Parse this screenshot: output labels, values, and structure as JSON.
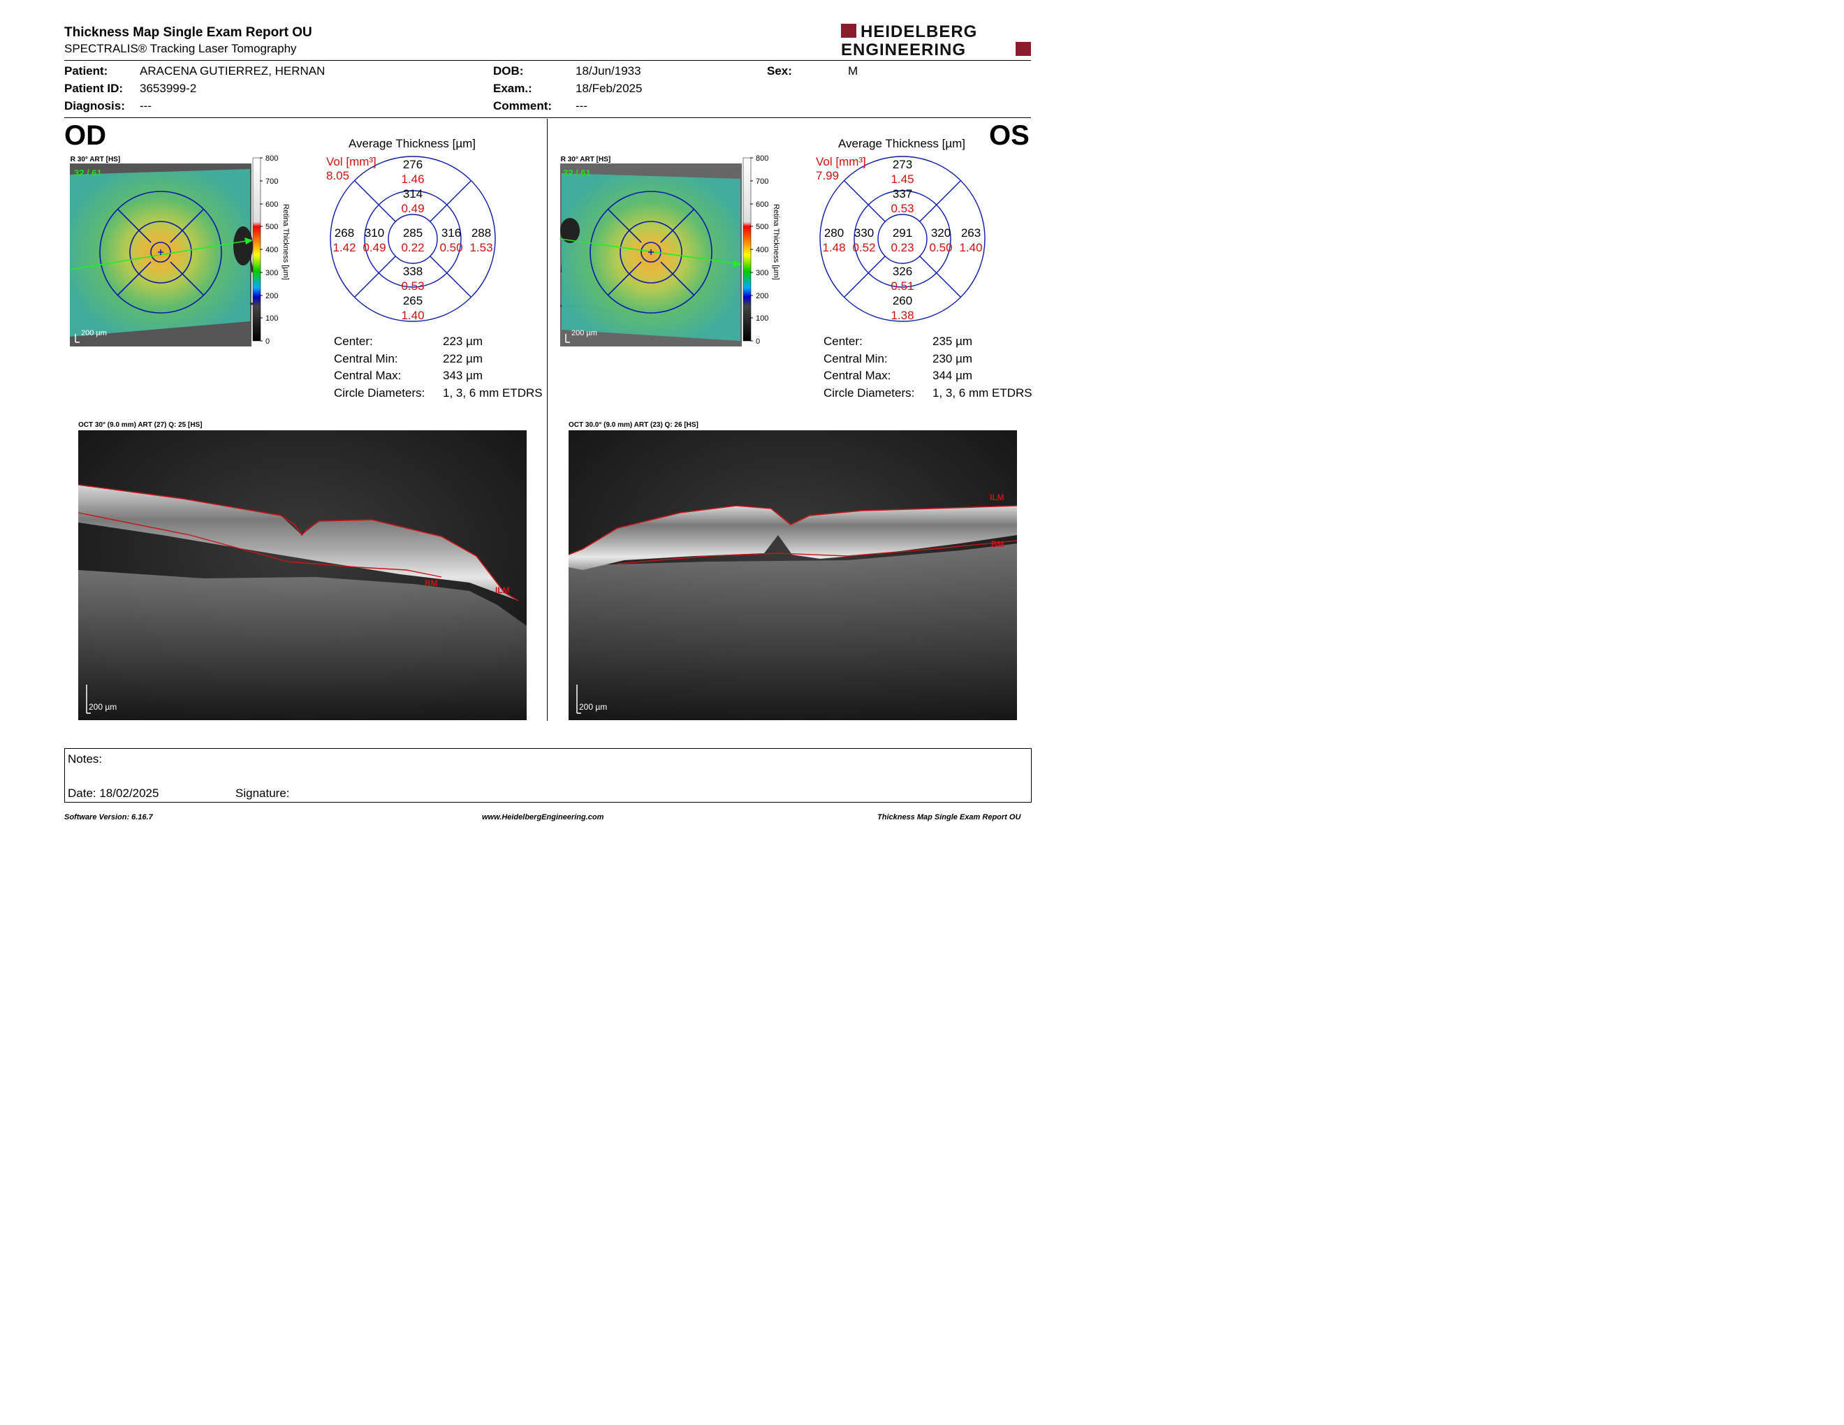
{
  "header": {
    "title": "Thickness Map Single Exam Report OU",
    "subtitle": "SPECTRALIS® Tracking Laser Tomography",
    "logo_line1": "HEIDELBERG",
    "logo_line2": "ENGINEERING",
    "brand_color": "#8b1c2c"
  },
  "patient": {
    "patient_label": "Patient:",
    "patient_value": "ARACENA GUTIERREZ, HERNAN",
    "id_label": "Patient ID:",
    "id_value": "3653999-2",
    "diagnosis_label": "Diagnosis:",
    "diagnosis_value": "---",
    "dob_label": "DOB:",
    "dob_value": "18/Jun/1933",
    "exam_label": "Exam.:",
    "exam_value": "18/Feb/2025",
    "comment_label": "Comment:",
    "comment_value": "---",
    "sex_label": "Sex:",
    "sex_value": "M"
  },
  "colorbar": {
    "ticks": [
      "800",
      "700",
      "600",
      "500",
      "400",
      "300",
      "200",
      "100",
      "0"
    ],
    "label": "Retina Thickness [µm]"
  },
  "od": {
    "eye_label": "OD",
    "ir_label": "IR 30° ART [HS]",
    "frame_counter": "32 / 61",
    "ir_scale": "200 µm",
    "grid_title": "Average Thickness [µm]",
    "vol_label": "Vol [mm³]",
    "vol_value": "8.05",
    "grid": {
      "outer_sup": "276",
      "outer_sup_vol": "1.46",
      "inner_sup": "314",
      "inner_sup_vol": "0.49",
      "outer_temp": "268",
      "outer_temp_vol": "1.42",
      "inner_temp": "310",
      "inner_temp_vol": "0.49",
      "center": "285",
      "center_vol": "0.22",
      "inner_nasal": "316",
      "inner_nasal_vol": "0.50",
      "outer_nasal": "288",
      "outer_nasal_vol": "1.53",
      "inner_inf": "338",
      "inner_inf_vol": "0.53",
      "outer_inf": "265",
      "outer_inf_vol": "1.40"
    },
    "stats": {
      "center_label": "Center:",
      "center_value": "223 µm",
      "min_label": "Central Min:",
      "min_value": "222 µm",
      "max_label": "Central Max:",
      "max_value": "343 µm",
      "diam_label": "Circle Diameters:",
      "diam_value": "1, 3, 6 mm ETDRS"
    },
    "oct_label": "OCT 30° (9.0 mm) ART (27) Q: 25 [HS]",
    "oct_ilm": "ILM",
    "oct_bm": "BM",
    "oct_scale": "200 µm"
  },
  "os": {
    "eye_label": "OS",
    "ir_label": "IR 30° ART [HS]",
    "frame_counter": "32 / 61",
    "ir_scale": "200 µm",
    "grid_title": "Average Thickness [µm]",
    "vol_label": "Vol [mm³]",
    "vol_value": "7.99",
    "grid": {
      "outer_sup": "273",
      "outer_sup_vol": "1.45",
      "inner_sup": "337",
      "inner_sup_vol": "0.53",
      "outer_temp": "280",
      "outer_temp_vol": "1.48",
      "inner_temp": "330",
      "inner_temp_vol": "0.52",
      "center": "291",
      "center_vol": "0.23",
      "inner_nasal": "320",
      "inner_nasal_vol": "0.50",
      "outer_nasal": "263",
      "outer_nasal_vol": "1.40",
      "inner_inf": "326",
      "inner_inf_vol": "0.51",
      "outer_inf": "260",
      "outer_inf_vol": "1.38"
    },
    "stats": {
      "center_label": "Center:",
      "center_value": "235 µm",
      "min_label": "Central Min:",
      "min_value": "230 µm",
      "max_label": "Central Max:",
      "max_value": "344 µm",
      "diam_label": "Circle Diameters:",
      "diam_value": "1, 3, 6 mm ETDRS"
    },
    "oct_label": "OCT 30.0° (9.0 mm) ART (23) Q: 26 [HS]",
    "oct_ilm": "ILM",
    "oct_bm": "BM",
    "oct_scale": "200 µm"
  },
  "notes": {
    "notes_label": "Notes:",
    "date_label": "Date: 18/02/2025",
    "signature_label": "Signature:"
  },
  "footer": {
    "software": "Software Version: 6.16.7",
    "website": "www.HeidelbergEngineering.com",
    "report": "Thickness Map Single Exam Report OU"
  },
  "colors": {
    "grid_blue": "#0a1aa8",
    "value_red": "#d01010",
    "ilm_red": "#c81414",
    "counter_green": "#22e022"
  }
}
